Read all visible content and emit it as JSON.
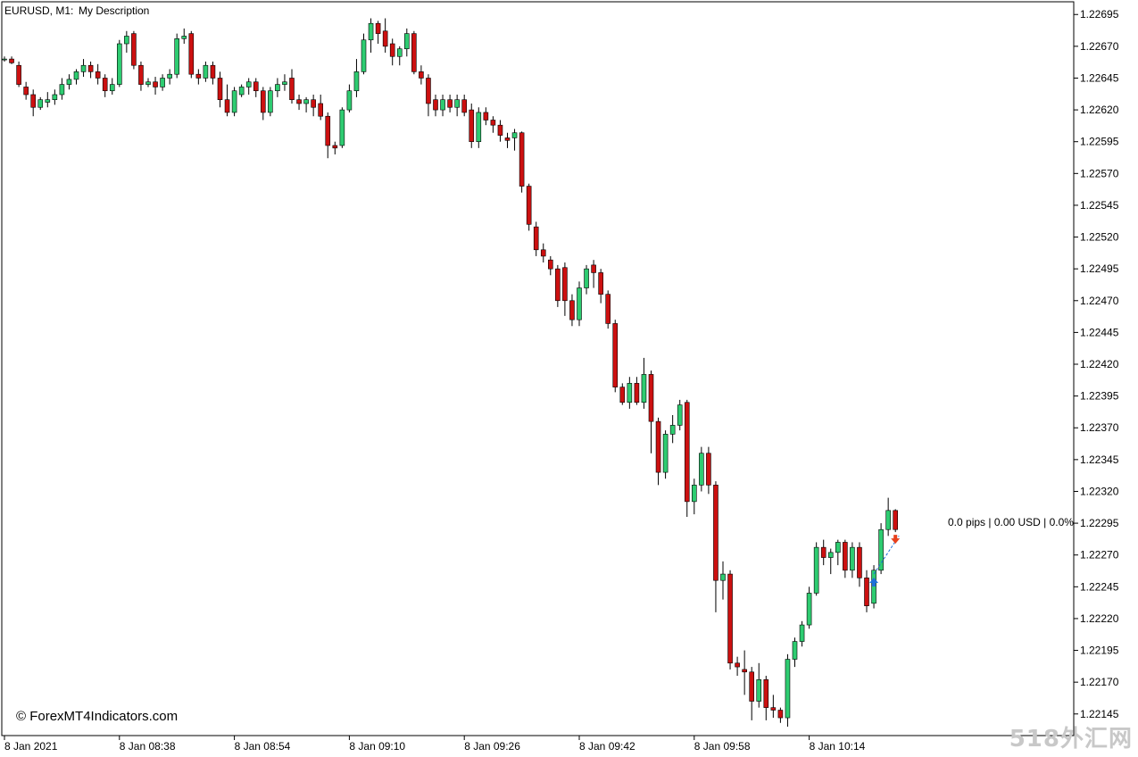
{
  "header": {
    "symbol": "EURUSD, M1:",
    "description": "My Description"
  },
  "copyright": "© ForexMT4Indicators.com",
  "trade_label": "0.0 pips | 0.00 USD | 0.0%",
  "watermark": "518外汇网",
  "colors": {
    "bull": "#2ecc71",
    "bear": "#cc1010",
    "wick": "#000000",
    "buy_arrow": "#1e6fd9",
    "sell_arrow": "#e8401c",
    "trade_line": "#1e6fd9",
    "axis": "#000000"
  },
  "chart_data": {
    "type": "candlestick",
    "symbol": "EURUSD",
    "timeframe": "M1",
    "ylim": [
      1.22128,
      1.22705
    ],
    "y_ticks": [
      "1.22695",
      "1.22670",
      "1.22645",
      "1.22620",
      "1.22595",
      "1.22570",
      "1.22545",
      "1.22520",
      "1.22495",
      "1.22470",
      "1.22445",
      "1.22420",
      "1.22395",
      "1.22370",
      "1.22345",
      "1.22320",
      "1.22295",
      "1.22270",
      "1.22245",
      "1.22220",
      "1.22195",
      "1.22170",
      "1.22145"
    ],
    "x_ticks": [
      {
        "label": "8 Jan 2021",
        "bar": 0
      },
      {
        "label": "8 Jan 08:38",
        "bar": 16
      },
      {
        "label": "8 Jan 08:54",
        "bar": 32
      },
      {
        "label": "8 Jan 09:10",
        "bar": 48
      },
      {
        "label": "8 Jan 09:26",
        "bar": 64
      },
      {
        "label": "8 Jan 09:42",
        "bar": 80
      },
      {
        "label": "8 Jan 09:58",
        "bar": 96
      },
      {
        "label": "8 Jan 10:14",
        "bar": 112
      }
    ],
    "candles": [
      [
        1.2266,
        1.22662,
        1.22658,
        1.2266
      ],
      [
        1.2266,
        1.22662,
        1.22656,
        1.22657
      ],
      [
        1.22655,
        1.22658,
        1.22638,
        1.2264
      ],
      [
        1.22638,
        1.22642,
        1.22628,
        1.22632
      ],
      [
        1.22632,
        1.22636,
        1.22615,
        1.22622
      ],
      [
        1.22622,
        1.2263,
        1.2262,
        1.22628
      ],
      [
        1.22626,
        1.22634,
        1.22622,
        1.22628
      ],
      [
        1.22628,
        1.22636,
        1.22624,
        1.22632
      ],
      [
        1.22632,
        1.22645,
        1.22628,
        1.2264
      ],
      [
        1.2264,
        1.22648,
        1.22636,
        1.22644
      ],
      [
        1.22644,
        1.22652,
        1.2264,
        1.2265
      ],
      [
        1.2265,
        1.2266,
        1.22646,
        1.22655
      ],
      [
        1.22655,
        1.22658,
        1.22645,
        1.2265
      ],
      [
        1.2265,
        1.22656,
        1.2264,
        1.22645
      ],
      [
        1.22645,
        1.22648,
        1.2263,
        1.22635
      ],
      [
        1.22635,
        1.22645,
        1.22632,
        1.2264
      ],
      [
        1.2264,
        1.22675,
        1.22638,
        1.22672
      ],
      [
        1.22672,
        1.22682,
        1.22665,
        1.22678
      ],
      [
        1.2268,
        1.22682,
        1.22652,
        1.22655
      ],
      [
        1.22655,
        1.22658,
        1.22635,
        1.2264
      ],
      [
        1.2264,
        1.22645,
        1.22638,
        1.22642
      ],
      [
        1.22642,
        1.22646,
        1.22632,
        1.22638
      ],
      [
        1.22638,
        1.22648,
        1.22635,
        1.22645
      ],
      [
        1.22645,
        1.22652,
        1.2264,
        1.22648
      ],
      [
        1.22648,
        1.2268,
        1.22645,
        1.22676
      ],
      [
        1.22676,
        1.22684,
        1.22672,
        1.22678
      ],
      [
        1.2268,
        1.22682,
        1.22645,
        1.22648
      ],
      [
        1.22648,
        1.22652,
        1.2264,
        1.22645
      ],
      [
        1.22645,
        1.22658,
        1.22642,
        1.22655
      ],
      [
        1.22655,
        1.22658,
        1.2264,
        1.22645
      ],
      [
        1.22645,
        1.2265,
        1.22622,
        1.22628
      ],
      [
        1.22628,
        1.2264,
        1.22615,
        1.22618
      ],
      [
        1.22618,
        1.22638,
        1.22615,
        1.22635
      ],
      [
        1.22632,
        1.2264,
        1.2263,
        1.22638
      ],
      [
        1.22638,
        1.22645,
        1.22632,
        1.22642
      ],
      [
        1.22642,
        1.22645,
        1.2263,
        1.22635
      ],
      [
        1.22635,
        1.22638,
        1.22612,
        1.22618
      ],
      [
        1.22618,
        1.22638,
        1.22615,
        1.22635
      ],
      [
        1.22635,
        1.22645,
        1.2263,
        1.2264
      ],
      [
        1.2264,
        1.22648,
        1.22635,
        1.22642
      ],
      [
        1.22645,
        1.22652,
        1.22625,
        1.22628
      ],
      [
        1.22628,
        1.22632,
        1.2262,
        1.22625
      ],
      [
        1.22625,
        1.2263,
        1.22618,
        1.22628
      ],
      [
        1.22628,
        1.22632,
        1.22615,
        1.22622
      ],
      [
        1.22625,
        1.22632,
        1.22612,
        1.22615
      ],
      [
        1.22615,
        1.22618,
        1.22582,
        1.22592
      ],
      [
        1.22592,
        1.22595,
        1.22585,
        1.2259
      ],
      [
        1.22592,
        1.22622,
        1.2259,
        1.2262
      ],
      [
        1.2262,
        1.2264,
        1.22618,
        1.22635
      ],
      [
        1.22635,
        1.2266,
        1.2263,
        1.2265
      ],
      [
        1.2265,
        1.2268,
        1.22648,
        1.22675
      ],
      [
        1.22675,
        1.22692,
        1.22665,
        1.22688
      ],
      [
        1.22688,
        1.2269,
        1.22672,
        1.2268
      ],
      [
        1.22682,
        1.22692,
        1.22665,
        1.2267
      ],
      [
        1.22672,
        1.22676,
        1.22655,
        1.22662
      ],
      [
        1.22662,
        1.2267,
        1.22655,
        1.22668
      ],
      [
        1.22668,
        1.22684,
        1.22662,
        1.2268
      ],
      [
        1.2268,
        1.22682,
        1.22648,
        1.2265
      ],
      [
        1.2265,
        1.22655,
        1.2264,
        1.22645
      ],
      [
        1.22645,
        1.22648,
        1.22615,
        1.22625
      ],
      [
        1.22628,
        1.22632,
        1.22615,
        1.2262
      ],
      [
        1.2262,
        1.22632,
        1.22615,
        1.22628
      ],
      [
        1.22628,
        1.22632,
        1.22618,
        1.22622
      ],
      [
        1.22622,
        1.22632,
        1.22615,
        1.22628
      ],
      [
        1.22628,
        1.22632,
        1.22615,
        1.22618
      ],
      [
        1.2262,
        1.22625,
        1.2259,
        1.22595
      ],
      [
        1.22595,
        1.22622,
        1.2259,
        1.22618
      ],
      [
        1.22618,
        1.22622,
        1.22608,
        1.22612
      ],
      [
        1.22612,
        1.22615,
        1.22602,
        1.22608
      ],
      [
        1.22608,
        1.22612,
        1.22595,
        1.226
      ],
      [
        1.22598,
        1.22602,
        1.2259,
        1.22596
      ],
      [
        1.22598,
        1.22605,
        1.22588,
        1.22602
      ],
      [
        1.22602,
        1.22603,
        1.22555,
        1.2256
      ],
      [
        1.2256,
        1.22562,
        1.22525,
        1.2253
      ],
      [
        1.22528,
        1.22532,
        1.22505,
        1.2251
      ],
      [
        1.2251,
        1.22515,
        1.225,
        1.22505
      ],
      [
        1.22502,
        1.22505,
        1.2249,
        1.22495
      ],
      [
        1.22495,
        1.22498,
        1.22465,
        1.2247
      ],
      [
        1.22496,
        1.225,
        1.22458,
        1.2247
      ],
      [
        1.2247,
        1.22475,
        1.2245,
        1.22455
      ],
      [
        1.22455,
        1.22485,
        1.2245,
        1.2248
      ],
      [
        1.2248,
        1.22498,
        1.22475,
        1.22495
      ],
      [
        1.22498,
        1.22502,
        1.2248,
        1.22492
      ],
      [
        1.22492,
        1.22495,
        1.22468,
        1.22475
      ],
      [
        1.22475,
        1.22478,
        1.22448,
        1.22452
      ],
      [
        1.22452,
        1.22455,
        1.22398,
        1.22402
      ],
      [
        1.22402,
        1.22405,
        1.22388,
        1.2239
      ],
      [
        1.2239,
        1.2241,
        1.22385,
        1.22405
      ],
      [
        1.22405,
        1.2241,
        1.22388,
        1.2239
      ],
      [
        1.2239,
        1.22425,
        1.22385,
        1.22412
      ],
      [
        1.22412,
        1.22415,
        1.2235,
        1.22375
      ],
      [
        1.22375,
        1.22378,
        1.22325,
        1.22335
      ],
      [
        1.22335,
        1.22368,
        1.2233,
        1.22365
      ],
      [
        1.22365,
        1.2238,
        1.22358,
        1.22372
      ],
      [
        1.22372,
        1.22392,
        1.22368,
        1.22388
      ],
      [
        1.2239,
        1.22392,
        1.223,
        1.22312
      ],
      [
        1.22312,
        1.2233,
        1.22302,
        1.22325
      ],
      [
        1.22325,
        1.22355,
        1.2232,
        1.2235
      ],
      [
        1.2235,
        1.22355,
        1.22318,
        1.22325
      ],
      [
        1.22325,
        1.22328,
        1.22225,
        1.2225
      ],
      [
        1.2225,
        1.22265,
        1.22235,
        1.22255
      ],
      [
        1.22255,
        1.22258,
        1.2218,
        1.22185
      ],
      [
        1.22185,
        1.2219,
        1.22175,
        1.22182
      ],
      [
        1.2218,
        1.22195,
        1.2216,
        1.22178
      ],
      [
        1.22178,
        1.22182,
        1.2214,
        1.22155
      ],
      [
        1.22155,
        1.22185,
        1.2215,
        1.22172
      ],
      [
        1.22172,
        1.22175,
        1.2214,
        1.2215
      ],
      [
        1.2215,
        1.2216,
        1.22142,
        1.22148
      ],
      [
        1.22148,
        1.2215,
        1.22138,
        1.22142
      ],
      [
        1.22142,
        1.22192,
        1.22135,
        1.22188
      ],
      [
        1.22188,
        1.22205,
        1.22182,
        1.22202
      ],
      [
        1.22202,
        1.22218,
        1.22198,
        1.22215
      ],
      [
        1.22215,
        1.22245,
        1.22212,
        1.2224
      ],
      [
        1.2224,
        1.2228,
        1.22238,
        1.22276
      ],
      [
        1.22276,
        1.22282,
        1.22262,
        1.22268
      ],
      [
        1.22268,
        1.22275,
        1.22255,
        1.22272
      ],
      [
        1.22272,
        1.22282,
        1.22262,
        1.2228
      ],
      [
        1.2228,
        1.22282,
        1.22252,
        1.22258
      ],
      [
        1.22258,
        1.2228,
        1.22252,
        1.22276
      ],
      [
        1.22276,
        1.2228,
        1.22245,
        1.22252
      ],
      [
        1.22252,
        1.22258,
        1.22225,
        1.2223
      ],
      [
        1.22232,
        1.22262,
        1.22228,
        1.22258
      ],
      [
        1.22258,
        1.22295,
        1.22255,
        1.2229
      ],
      [
        1.2229,
        1.22315,
        1.22285,
        1.22305
      ],
      [
        1.22305,
        1.22306,
        1.22288,
        1.2229
      ]
    ],
    "signals": [
      {
        "type": "buy",
        "bar": 121,
        "price": 1.22248
      },
      {
        "type": "sell",
        "bar": 124,
        "price": 1.22283
      }
    ],
    "trade_line": {
      "from_bar": 121,
      "from_price": 1.22255,
      "to_bar": 124,
      "to_price": 1.22285
    }
  }
}
